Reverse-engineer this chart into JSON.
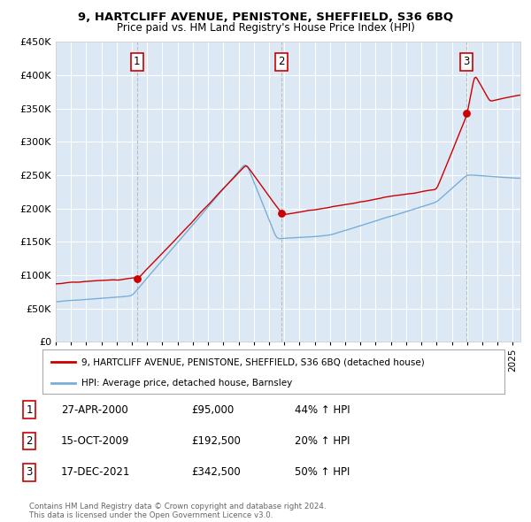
{
  "title": "9, HARTCLIFF AVENUE, PENISTONE, SHEFFIELD, S36 6BQ",
  "subtitle": "Price paid vs. HM Land Registry's House Price Index (HPI)",
  "background_color": "#ffffff",
  "plot_bg_color": "#dce9f5",
  "grid_color": "#ffffff",
  "sale_dates_year": [
    2000.32,
    2009.79,
    2021.96
  ],
  "sale_prices": [
    95000,
    192500,
    342500
  ],
  "sale_labels": [
    "1",
    "2",
    "3"
  ],
  "legend_line1": "9, HARTCLIFF AVENUE, PENISTONE, SHEFFIELD, S36 6BQ (detached house)",
  "legend_line2": "HPI: Average price, detached house, Barnsley",
  "table_data": [
    [
      "1",
      "27-APR-2000",
      "£95,000",
      "44% ↑ HPI"
    ],
    [
      "2",
      "15-OCT-2009",
      "£192,500",
      "20% ↑ HPI"
    ],
    [
      "3",
      "17-DEC-2021",
      "£342,500",
      "50% ↑ HPI"
    ]
  ],
  "footer": "Contains HM Land Registry data © Crown copyright and database right 2024.\nThis data is licensed under the Open Government Licence v3.0.",
  "red_color": "#cc0000",
  "blue_color": "#7aaed6",
  "vline_color": "#bbbbbb",
  "ylim": [
    0,
    450000
  ],
  "yticks": [
    0,
    50000,
    100000,
    150000,
    200000,
    250000,
    300000,
    350000,
    400000,
    450000
  ],
  "xmin": 1995,
  "xmax": 2025.5
}
